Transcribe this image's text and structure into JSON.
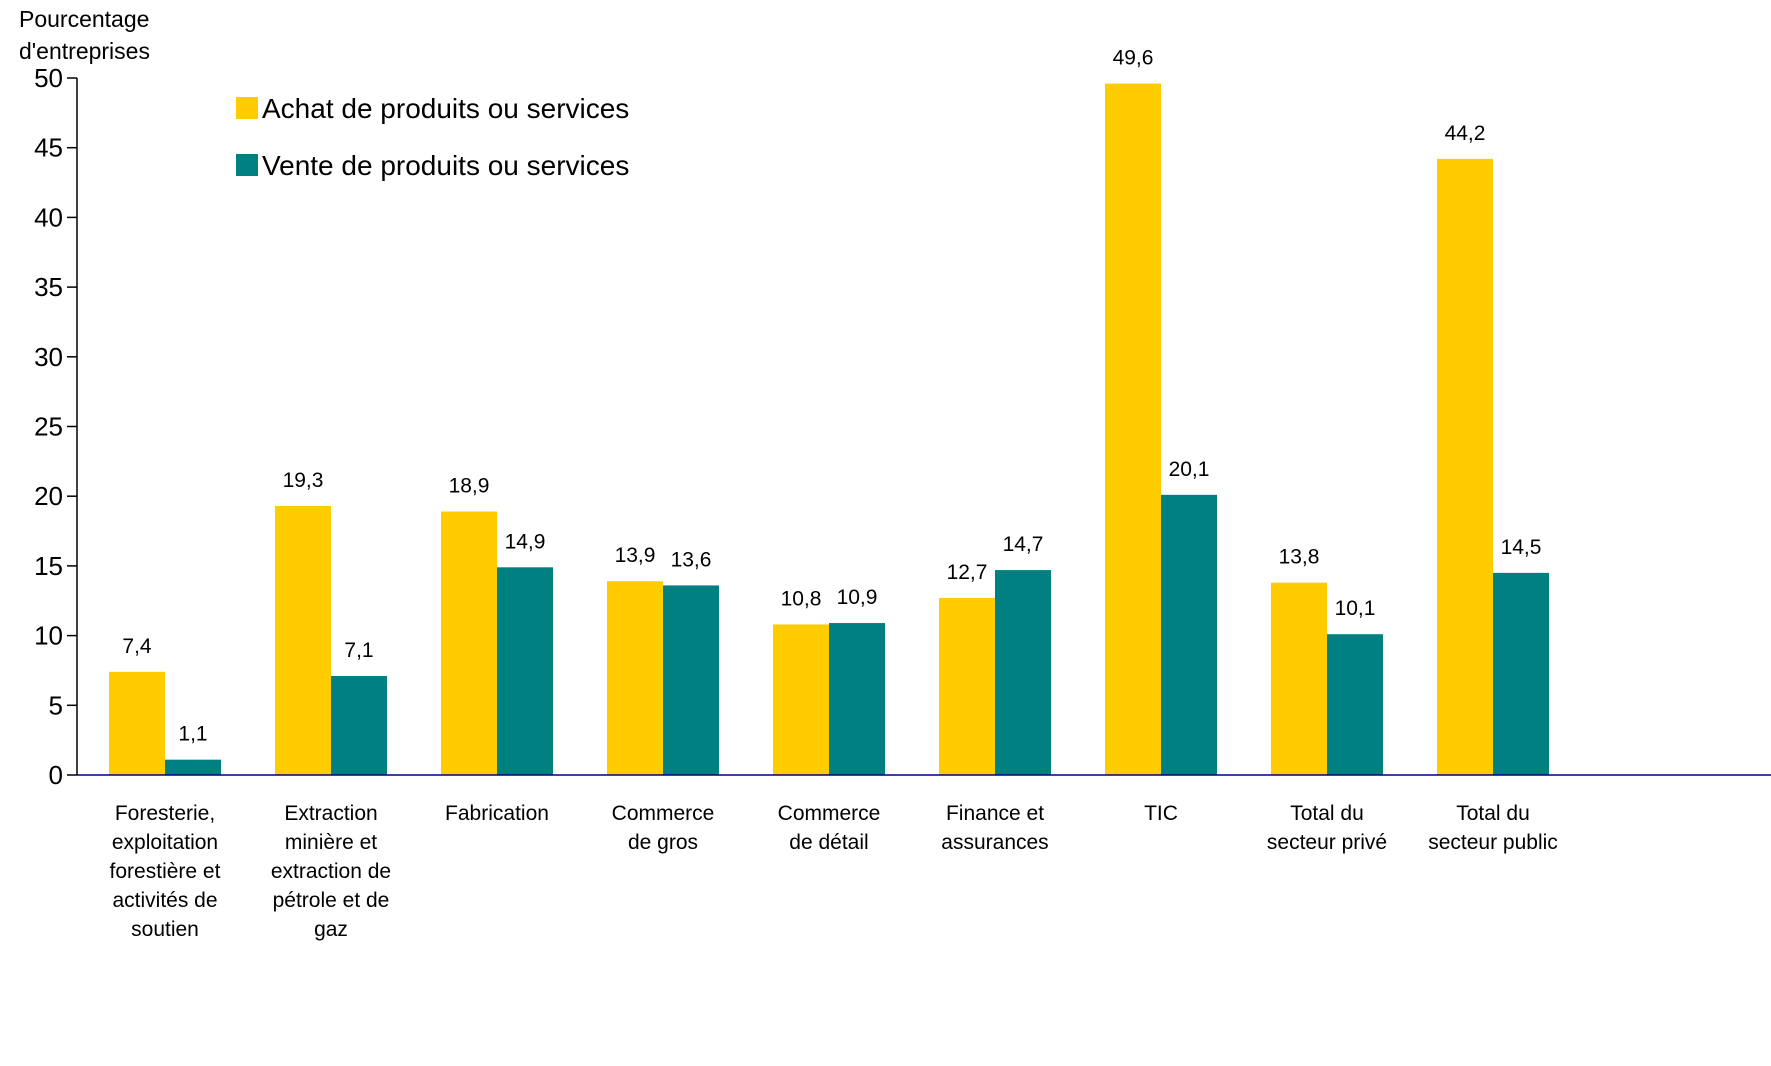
{
  "chart_data": {
    "type": "bar",
    "ylabel": "Pourcentage d'entreprises",
    "ylabel_lines": [
      "Pourcentage",
      "d'entreprises"
    ],
    "ylim": [
      0,
      50
    ],
    "yticks": [
      0,
      5,
      10,
      15,
      20,
      25,
      30,
      35,
      40,
      45,
      50
    ],
    "grid": false,
    "legend_position": "top-left",
    "categories": [
      "Foresterie, exploitation forestière et activités de soutien",
      "Extraction minière et extraction de pétrole et de gaz",
      "Fabrication",
      "Commerce de gros",
      "Commerce de détail",
      "Finance et assurances",
      "TIC",
      "Total du secteur privé",
      "Total du secteur public"
    ],
    "category_lines": [
      [
        "Foresterie,",
        "exploitation",
        "forestière et",
        "activités de",
        "soutien"
      ],
      [
        "Extraction",
        "minière et",
        "extraction de",
        "pétrole et de",
        "gaz"
      ],
      [
        "Fabrication"
      ],
      [
        "Commerce",
        "de gros"
      ],
      [
        "Commerce",
        "de détail"
      ],
      [
        "Finance et",
        "assurances"
      ],
      [
        "TIC"
      ],
      [
        "Total du",
        "secteur privé"
      ],
      [
        "Total du",
        "secteur public"
      ]
    ],
    "series": [
      {
        "name": "Achat de produits ou services",
        "color": "#FFCC00",
        "values": [
          7.4,
          19.3,
          18.9,
          13.9,
          10.8,
          12.7,
          49.6,
          13.8,
          44.2
        ],
        "labels": [
          "7,4",
          "19,3",
          "18,9",
          "13,9",
          "10,8",
          "12,7",
          "49,6",
          "13,8",
          "44,2"
        ]
      },
      {
        "name": "Vente de produits ou services",
        "color": "#008080",
        "values": [
          1.1,
          7.1,
          14.9,
          13.6,
          10.9,
          14.7,
          20.1,
          10.1,
          14.5
        ],
        "labels": [
          "1,1",
          "7,1",
          "14,9",
          "13,6",
          "10,9",
          "14,7",
          "20,1",
          "10,1",
          "14,5"
        ]
      }
    ],
    "axis_color": "#000080"
  }
}
